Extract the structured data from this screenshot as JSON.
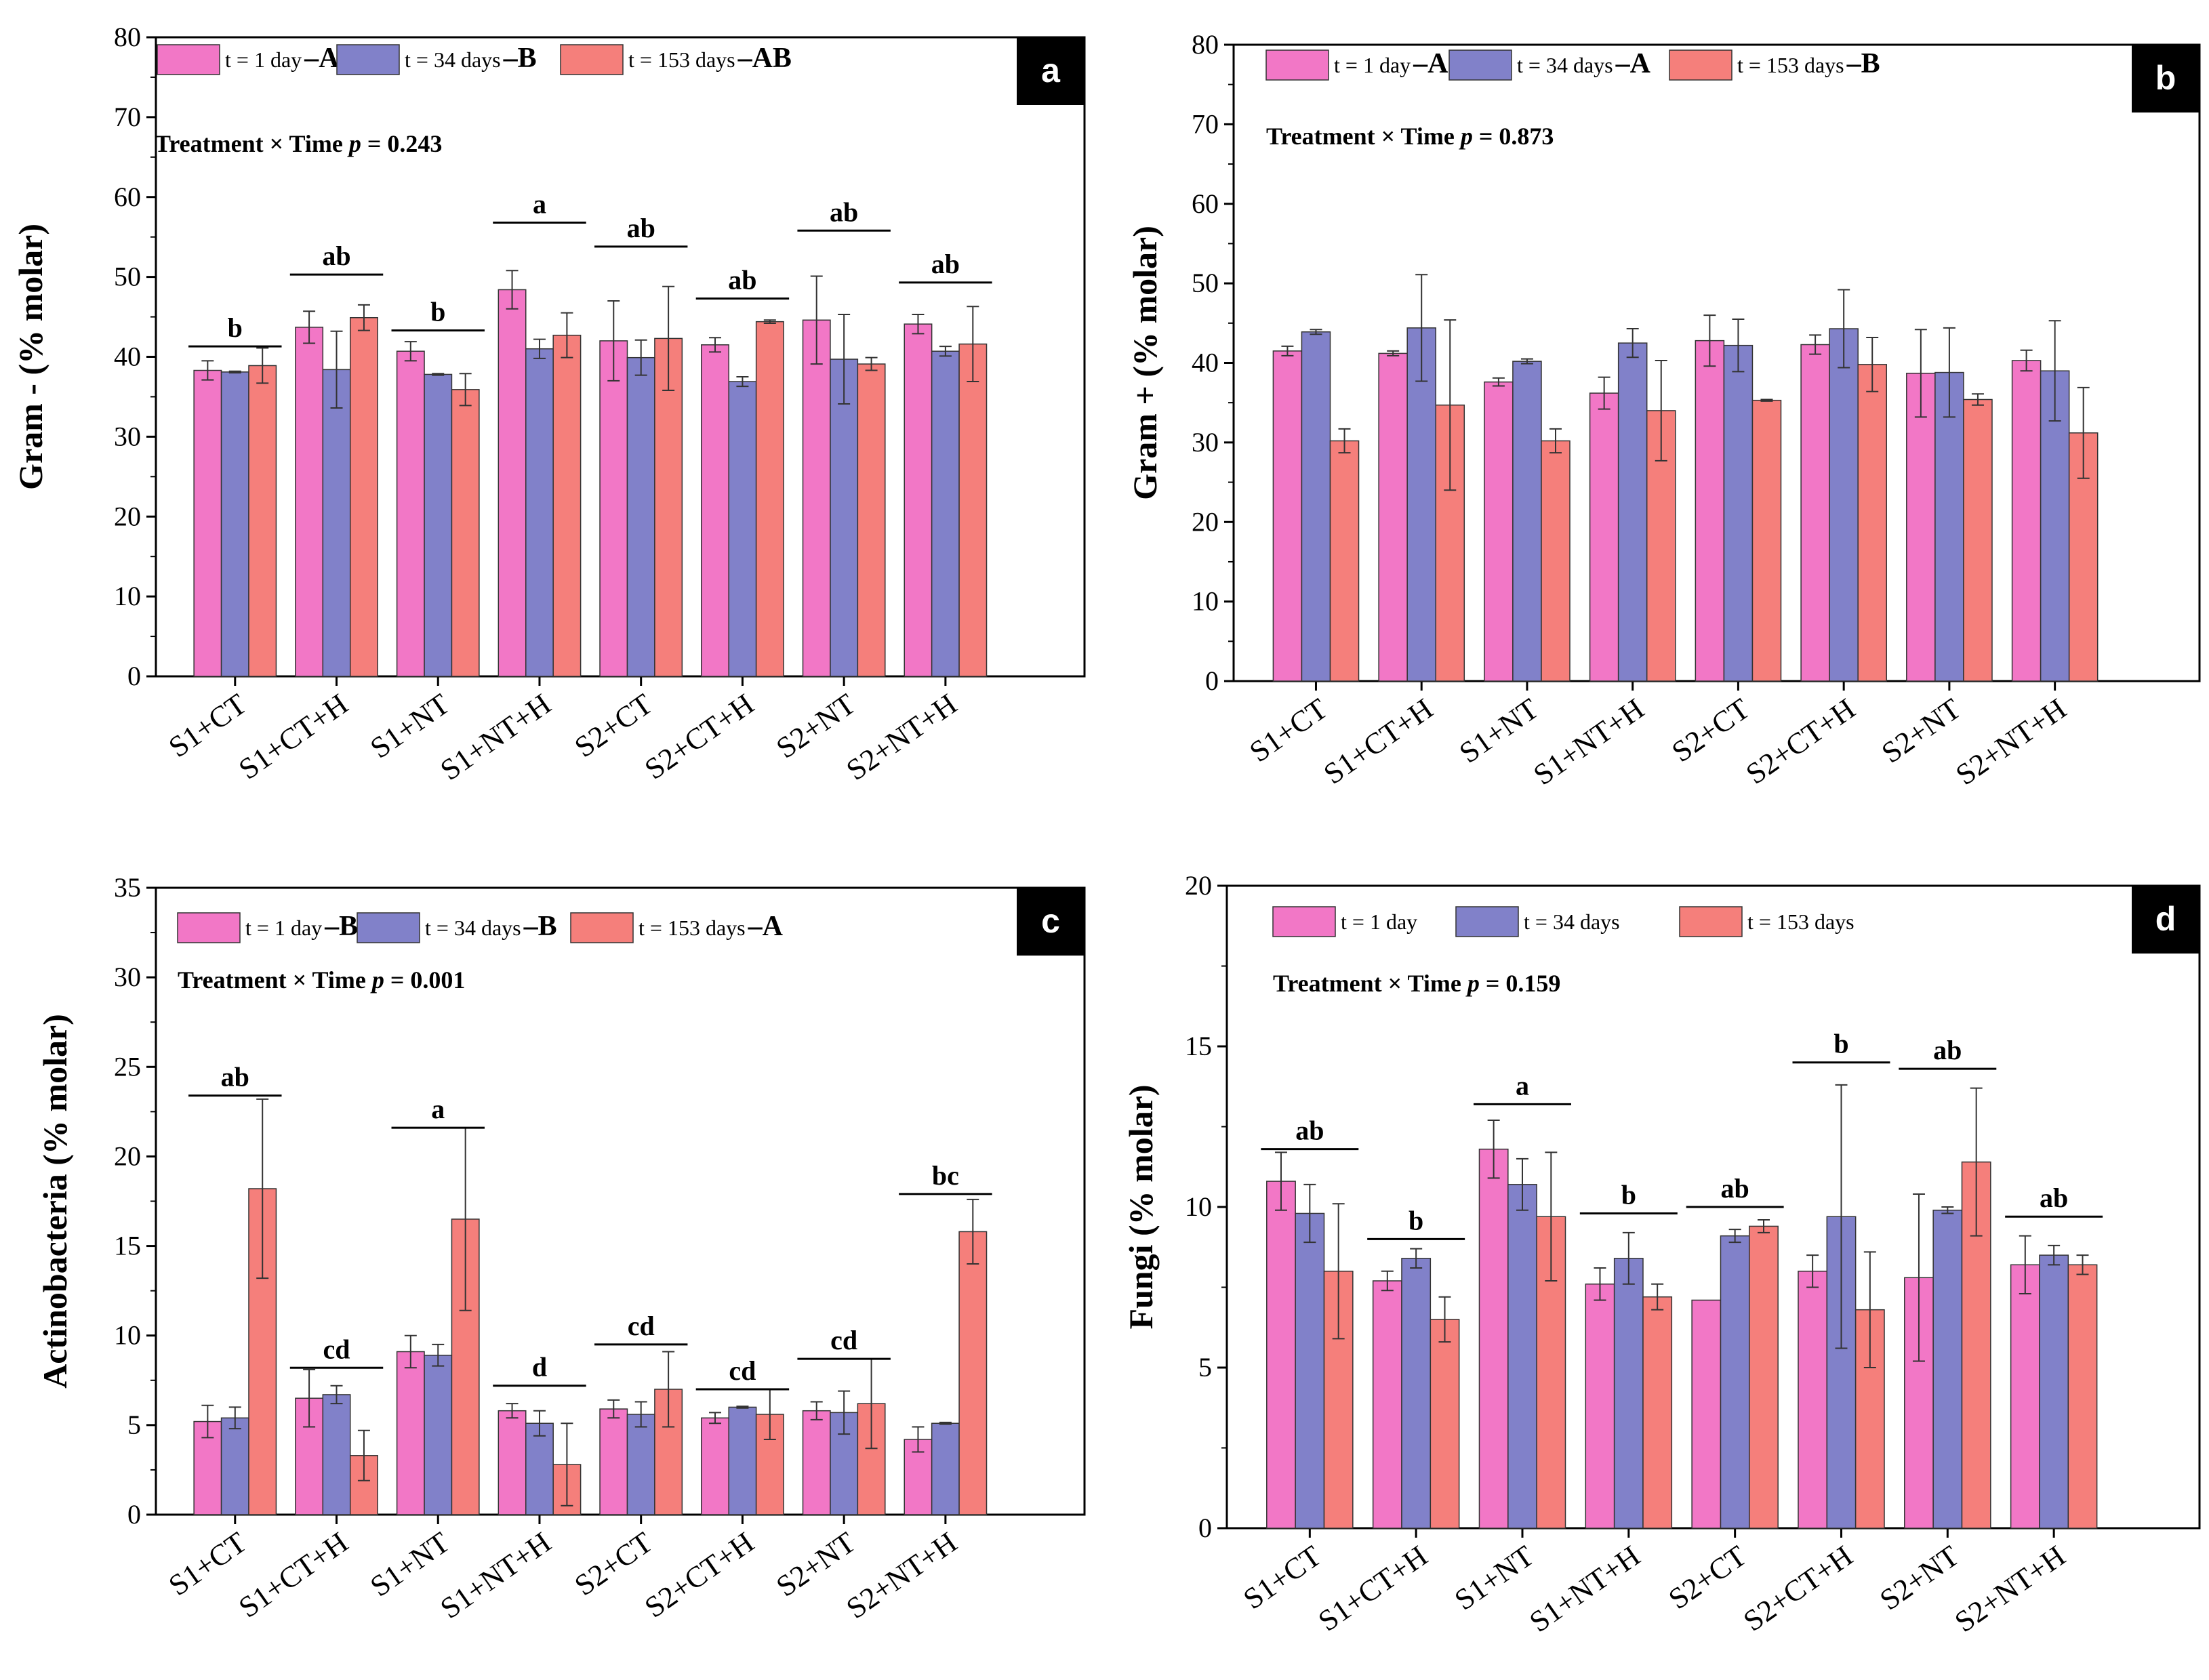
{
  "figure": {
    "colors": {
      "t1": "#f277c6",
      "t34": "#8181c9",
      "t153": "#f57f7b",
      "axis": "#000000"
    },
    "time_labels": [
      "t = 1 day",
      "t = 34 days",
      "t = 153 days"
    ]
  },
  "chart_data": [
    {
      "panel": "a",
      "type": "bar",
      "ylabel": "Gram - (% molar)",
      "ylim": [
        0,
        80
      ],
      "yticks": [
        0,
        10,
        20,
        30,
        40,
        50,
        60,
        70,
        80
      ],
      "categories": [
        "S1+CT",
        "S1+CT+H",
        "S1+NT",
        "S1+NT+H",
        "S2+CT",
        "S2+CT+H",
        "S2+NT",
        "S2+NT+H"
      ],
      "series": [
        {
          "name": "t = 1 day",
          "group": "A",
          "values": [
            38.3,
            43.7,
            40.7,
            48.4,
            42.0,
            41.5,
            44.6,
            44.1
          ],
          "errors": [
            1.2,
            2.0,
            1.2,
            2.4,
            5.0,
            0.9,
            5.5,
            1.2
          ]
        },
        {
          "name": "t = 34 days",
          "group": "B",
          "values": [
            38.1,
            38.4,
            37.8,
            41.0,
            39.9,
            36.9,
            39.7,
            40.7
          ],
          "errors": [
            0.1,
            4.8,
            0.1,
            1.2,
            2.2,
            0.6,
            5.6,
            0.6
          ]
        },
        {
          "name": "t = 153 days",
          "group": "AB",
          "values": [
            38.9,
            44.9,
            35.9,
            42.7,
            42.3,
            44.4,
            39.1,
            41.6
          ],
          "errors": [
            2.2,
            1.6,
            2.0,
            2.8,
            6.5,
            0.2,
            0.8,
            4.7
          ]
        }
      ],
      "letters": [
        "b",
        "ab",
        "b",
        "a",
        "ab",
        "ab",
        "ab",
        "ab"
      ],
      "letter_y": [
        41.3,
        50.3,
        43.3,
        56.8,
        53.8,
        47.3,
        55.8,
        49.3
      ],
      "interaction_text": "Treatment × Time",
      "p_label": "p",
      "p_text": "= 0.243"
    },
    {
      "panel": "b",
      "type": "bar",
      "ylabel": "Gram + (% molar)",
      "ylim": [
        0,
        80
      ],
      "yticks": [
        0,
        10,
        20,
        30,
        40,
        50,
        60,
        70,
        80
      ],
      "categories": [
        "S1+CT",
        "S1+CT+H",
        "S1+NT",
        "S1+NT+H",
        "S2+CT",
        "S2+CT+H",
        "S2+NT",
        "S2+NT+H"
      ],
      "series": [
        {
          "name": "t = 1 day",
          "group": "A",
          "values": [
            41.5,
            41.2,
            37.6,
            36.2,
            42.8,
            42.3,
            38.7,
            40.3
          ],
          "errors": [
            0.6,
            0.3,
            0.5,
            2.0,
            3.2,
            1.2,
            5.5,
            1.3
          ]
        },
        {
          "name": "t = 34 days",
          "group": "A",
          "values": [
            43.9,
            44.4,
            40.2,
            42.5,
            42.2,
            44.3,
            38.8,
            39.0
          ],
          "errors": [
            0.3,
            6.7,
            0.3,
            1.8,
            3.3,
            4.9,
            5.6,
            6.3
          ]
        },
        {
          "name": "t = 153 days",
          "group": "B",
          "values": [
            30.2,
            34.7,
            30.2,
            34.0,
            35.3,
            39.8,
            35.4,
            31.2
          ],
          "errors": [
            1.5,
            10.7,
            1.5,
            6.3,
            0.1,
            3.4,
            0.7,
            5.7
          ]
        }
      ],
      "letters": [],
      "letter_y": [],
      "interaction_text": "Treatment × Time",
      "p_label": "p",
      "p_text": "= 0.873"
    },
    {
      "panel": "c",
      "type": "bar",
      "ylabel": "Actinobacteria (% molar)",
      "ylim": [
        0,
        35
      ],
      "yticks": [
        0,
        5,
        10,
        15,
        20,
        25,
        30,
        35
      ],
      "categories": [
        "S1+CT",
        "S1+CT+H",
        "S1+NT",
        "S1+NT+H",
        "S2+CT",
        "S2+CT+H",
        "S2+NT",
        "S2+NT+H"
      ],
      "series": [
        {
          "name": "t = 1 day",
          "group": "B",
          "values": [
            5.2,
            6.5,
            9.1,
            5.8,
            5.9,
            5.4,
            5.8,
            4.2
          ],
          "errors": [
            0.9,
            1.6,
            0.9,
            0.4,
            0.5,
            0.3,
            0.5,
            0.7
          ]
        },
        {
          "name": "t = 34 days",
          "group": "B",
          "values": [
            5.4,
            6.7,
            8.9,
            5.1,
            5.6,
            6.0,
            5.7,
            5.1
          ],
          "errors": [
            0.6,
            0.5,
            0.6,
            0.7,
            0.7,
            0.05,
            1.2,
            0.05
          ]
        },
        {
          "name": "t = 153 days",
          "group": "A",
          "values": [
            18.2,
            3.3,
            16.5,
            2.8,
            7.0,
            5.6,
            6.2,
            15.8
          ],
          "errors": [
            5.0,
            1.4,
            5.1,
            2.3,
            2.1,
            1.4,
            2.5,
            1.8
          ]
        }
      ],
      "letters": [
        "ab",
        "cd",
        "a",
        "d",
        "cd",
        "cd",
        "cd",
        "bc"
      ],
      "letter_y": [
        23.4,
        8.2,
        21.6,
        7.2,
        9.5,
        7.0,
        8.7,
        17.9
      ],
      "interaction_text": "Treatment × Time",
      "p_label": "p",
      "p_text": "= 0.001"
    },
    {
      "panel": "d",
      "type": "bar",
      "ylabel": "Fungi (% molar)",
      "ylim": [
        0,
        20
      ],
      "yticks": [
        0,
        5,
        10,
        15,
        20
      ],
      "categories": [
        "S1+CT",
        "S1+CT+H",
        "S1+NT",
        "S1+NT+H",
        "S2+CT",
        "S2+CT+H",
        "S2+NT",
        "S2+NT+H"
      ],
      "series": [
        {
          "name": "t = 1 day",
          "group": "",
          "values": [
            10.8,
            7.7,
            11.8,
            7.6,
            7.1,
            8.0,
            7.8,
            8.2
          ],
          "errors": [
            0.9,
            0.3,
            0.9,
            0.5,
            0.0,
            0.5,
            2.6,
            0.9
          ]
        },
        {
          "name": "t = 34 days",
          "group": "",
          "values": [
            9.8,
            8.4,
            10.7,
            8.4,
            9.1,
            9.7,
            9.9,
            8.5
          ],
          "errors": [
            0.9,
            0.3,
            0.8,
            0.8,
            0.2,
            4.1,
            0.1,
            0.3
          ]
        },
        {
          "name": "t = 153 days",
          "group": "",
          "values": [
            8.0,
            6.5,
            9.7,
            7.2,
            9.4,
            6.8,
            11.4,
            8.2
          ],
          "errors": [
            2.1,
            0.7,
            2.0,
            0.4,
            0.2,
            1.8,
            2.3,
            0.3
          ]
        }
      ],
      "letters": [
        "ab",
        "b",
        "a",
        "b",
        "ab",
        "b",
        "ab",
        "ab"
      ],
      "letter_y": [
        11.8,
        9.0,
        13.2,
        9.8,
        10.0,
        14.5,
        14.3,
        9.7
      ],
      "interaction_text": "Treatment × Time",
      "p_label": "p",
      "p_text": "= 0.159"
    }
  ]
}
